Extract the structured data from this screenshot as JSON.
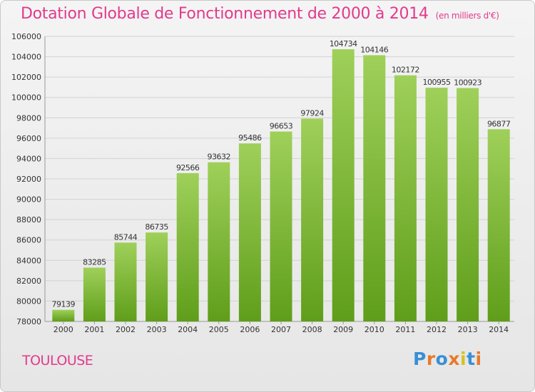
{
  "header": {
    "title": "Dotation Globale de Fonctionnement de 2000 à 2014",
    "subtitle": "(en milliers d'€)"
  },
  "footer": {
    "city": "TOULOUSE",
    "logo_letters": [
      "P",
      "r",
      "o",
      "x",
      "i",
      "t",
      "i"
    ],
    "logo_colors": [
      "#3a8fd6",
      "#e8792a",
      "#3a8fd6",
      "#e8792a",
      "#d6c21f",
      "#3a8fd6",
      "#e8792a"
    ]
  },
  "chart_data": {
    "type": "bar",
    "categories": [
      "2000",
      "2001",
      "2002",
      "2003",
      "2004",
      "2005",
      "2006",
      "2007",
      "2008",
      "2009",
      "2010",
      "2011",
      "2012",
      "2013",
      "2014"
    ],
    "values": [
      79139,
      83285,
      85744,
      86735,
      92566,
      93632,
      95486,
      96653,
      97924,
      104734,
      104146,
      102172,
      100955,
      100923,
      96877
    ],
    "ylim": [
      78000,
      106000
    ],
    "yticks": [
      78000,
      80000,
      82000,
      84000,
      86000,
      88000,
      90000,
      92000,
      94000,
      96000,
      98000,
      100000,
      102000,
      104000,
      106000
    ],
    "grid": true,
    "bar_color_top": "#9fd05a",
    "bar_color_bottom": "#5f9e1a",
    "label_color": "#333333"
  }
}
